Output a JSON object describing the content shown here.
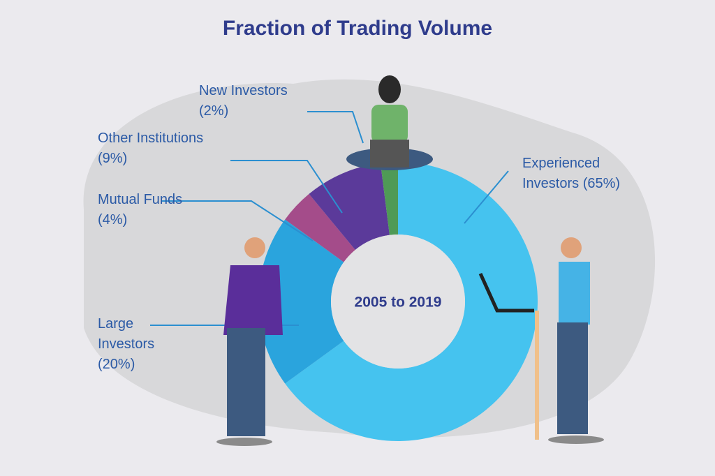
{
  "chart_data": {
    "type": "donut",
    "title": "Fraction of Trading Volume",
    "center_label": "2005 to 2019",
    "categories": [
      "Experienced Investors",
      "Large Investors",
      "Mutual Funds",
      "Other Institutions",
      "New Investors"
    ],
    "values": [
      65,
      20,
      4,
      9,
      2
    ],
    "value_labels": [
      "(65%)",
      "(20%)",
      "(4%)",
      "(9%)",
      "(2%)"
    ],
    "colors": [
      "#45c3ef",
      "#2aa4dd",
      "#a44c8a",
      "#5b3a9a",
      "#4f9a56"
    ]
  }
}
